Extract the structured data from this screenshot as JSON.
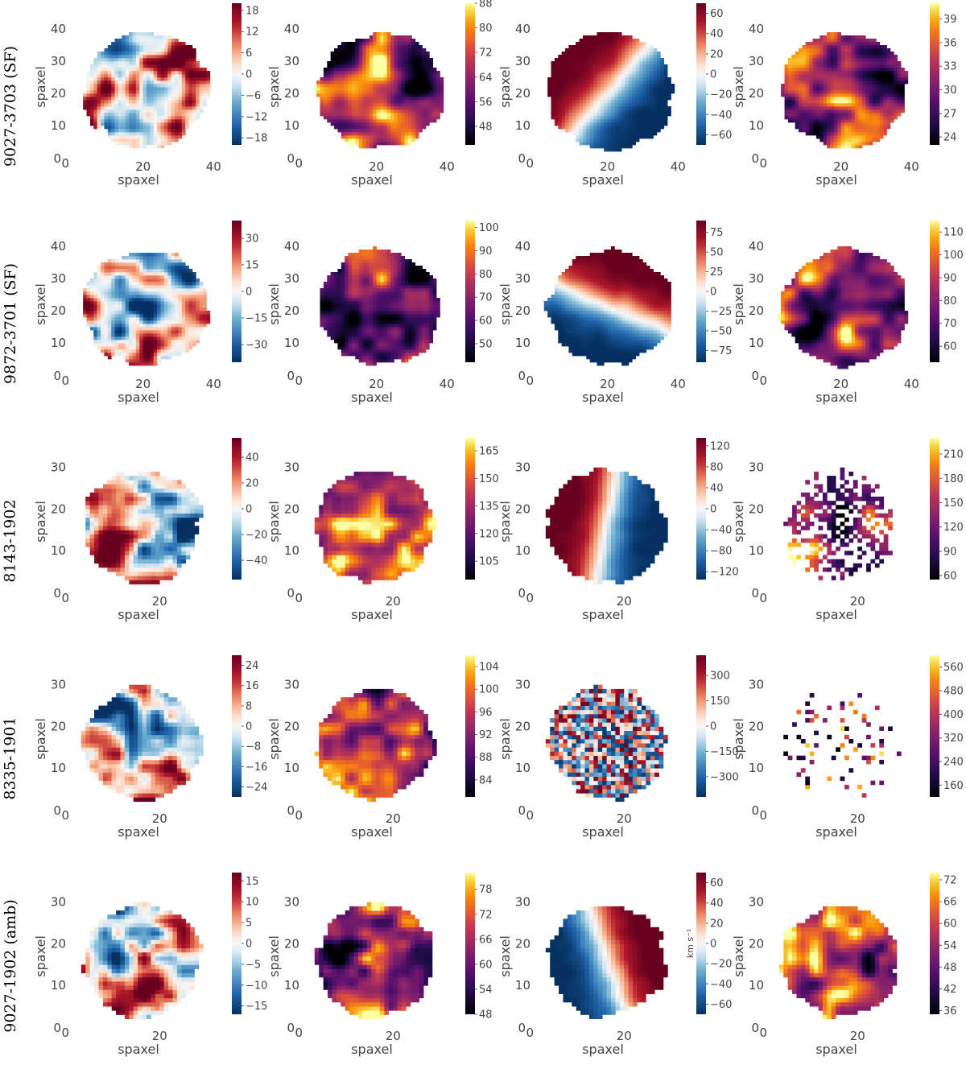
{
  "figure": {
    "background": "#ffffff"
  },
  "chart_data": [
    {
      "type": "heatmap",
      "row": 0,
      "col": 0,
      "row_label": "9027-3703 (SF)",
      "cmap": "rdbu",
      "xlabel": "spaxel",
      "ylabel": "spaxel",
      "xlim": [
        0,
        42
      ],
      "ylim": [
        0,
        44
      ],
      "xticks": [
        20,
        40
      ],
      "yticks": [
        10,
        20,
        30,
        40
      ],
      "origin_label": "0",
      "vmin": -20,
      "vmax": 20,
      "colorbar_ticks": [
        "18",
        "12",
        "6",
        "0",
        "−6",
        "−12",
        "−18"
      ],
      "colorbar_label": ""
    },
    {
      "type": "heatmap",
      "row": 0,
      "col": 1,
      "cmap": "inferno",
      "xlabel": "spaxel",
      "ylabel": "spaxel",
      "xlim": [
        0,
        42
      ],
      "ylim": [
        0,
        44
      ],
      "xticks": [
        20,
        40
      ],
      "yticks": [
        10,
        20,
        30,
        40
      ],
      "origin_label": "0",
      "vmin": 42,
      "vmax": 88,
      "colorbar_ticks": [
        "88",
        "80",
        "72",
        "64",
        "56",
        "48"
      ],
      "colorbar_label": ""
    },
    {
      "type": "heatmap",
      "row": 0,
      "col": 2,
      "cmap": "rdbu",
      "xlabel": "spaxel",
      "ylabel": "spaxel",
      "xlim": [
        0,
        42
      ],
      "ylim": [
        0,
        44
      ],
      "xticks": [
        20,
        40
      ],
      "yticks": [
        10,
        20,
        30,
        40
      ],
      "origin_label": "0",
      "vmin": -70,
      "vmax": 70,
      "colorbar_ticks": [
        "60",
        "40",
        "20",
        "0",
        "−20",
        "−40",
        "−60"
      ],
      "colorbar_label": ""
    },
    {
      "type": "heatmap",
      "row": 0,
      "col": 3,
      "cmap": "inferno",
      "xlabel": "spaxel",
      "ylabel": "spaxel",
      "xlim": [
        0,
        42
      ],
      "ylim": [
        0,
        44
      ],
      "xticks": [
        20,
        40
      ],
      "yticks": [
        10,
        20,
        30,
        40
      ],
      "origin_label": "0",
      "vmin": 23,
      "vmax": 41,
      "colorbar_ticks": [
        "39",
        "36",
        "33",
        "30",
        "27",
        "24"
      ],
      "colorbar_label": ""
    },
    {
      "type": "heatmap",
      "row": 1,
      "col": 0,
      "row_label": "9872-3701 (SF)",
      "cmap": "rdbu",
      "xlabel": "spaxel",
      "ylabel": "spaxel",
      "xlim": [
        0,
        42
      ],
      "ylim": [
        0,
        44
      ],
      "xticks": [
        20,
        40
      ],
      "yticks": [
        10,
        20,
        30,
        40
      ],
      "origin_label": "0",
      "vmin": -40,
      "vmax": 40,
      "colorbar_ticks": [
        "30",
        "15",
        "0",
        "−15",
        "−30"
      ],
      "colorbar_label": ""
    },
    {
      "type": "heatmap",
      "row": 1,
      "col": 1,
      "cmap": "inferno",
      "xlabel": "spaxel",
      "ylabel": "spaxel",
      "xlim": [
        0,
        42
      ],
      "ylim": [
        0,
        44
      ],
      "xticks": [
        20,
        40
      ],
      "yticks": [
        10,
        20,
        30,
        40
      ],
      "origin_label": "0",
      "vmin": 42,
      "vmax": 103,
      "colorbar_ticks": [
        "100",
        "90",
        "80",
        "70",
        "60",
        "50"
      ],
      "colorbar_label": ""
    },
    {
      "type": "heatmap",
      "row": 1,
      "col": 2,
      "cmap": "rdbu",
      "xlabel": "spaxel",
      "ylabel": "spaxel",
      "xlim": [
        0,
        42
      ],
      "ylim": [
        0,
        44
      ],
      "xticks": [
        20,
        40
      ],
      "yticks": [
        10,
        20,
        30,
        40
      ],
      "origin_label": "0",
      "vmin": -90,
      "vmax": 90,
      "colorbar_ticks": [
        "75",
        "50",
        "25",
        "0",
        "−25",
        "−50",
        "−75"
      ],
      "colorbar_label": ""
    },
    {
      "type": "heatmap",
      "row": 1,
      "col": 3,
      "cmap": "inferno",
      "xlabel": "spaxel",
      "ylabel": "spaxel",
      "xlim": [
        0,
        42
      ],
      "ylim": [
        0,
        44
      ],
      "xticks": [
        20,
        40
      ],
      "yticks": [
        10,
        20,
        30,
        40
      ],
      "origin_label": "0",
      "vmin": 53,
      "vmax": 115,
      "colorbar_ticks": [
        "110",
        "100",
        "90",
        "80",
        "70",
        "60"
      ],
      "colorbar_label": ""
    },
    {
      "type": "heatmap",
      "row": 2,
      "col": 0,
      "row_label": "8143-1902",
      "cmap": "rdbu",
      "xlabel": "spaxel",
      "ylabel": "spaxel",
      "xlim": [
        0,
        34
      ],
      "ylim": [
        0,
        34
      ],
      "xticks": [
        20
      ],
      "yticks": [
        10,
        20,
        30
      ],
      "origin_label": "0",
      "vmin": -55,
      "vmax": 55,
      "colorbar_ticks": [
        "40",
        "20",
        "0",
        "−20",
        "−40"
      ],
      "colorbar_label": ""
    },
    {
      "type": "heatmap",
      "row": 2,
      "col": 1,
      "cmap": "inferno",
      "xlabel": "spaxel",
      "ylabel": "spaxel",
      "xlim": [
        0,
        34
      ],
      "ylim": [
        0,
        34
      ],
      "xticks": [
        20
      ],
      "yticks": [
        10,
        20,
        30
      ],
      "origin_label": "0",
      "vmin": 95,
      "vmax": 172,
      "colorbar_ticks": [
        "165",
        "150",
        "135",
        "120",
        "105"
      ],
      "colorbar_label": ""
    },
    {
      "type": "heatmap",
      "row": 2,
      "col": 2,
      "cmap": "rdbu",
      "xlabel": "spaxel",
      "ylabel": "spaxel",
      "xlim": [
        0,
        34
      ],
      "ylim": [
        0,
        34
      ],
      "xticks": [
        20
      ],
      "yticks": [
        10,
        20,
        30
      ],
      "origin_label": "0",
      "vmin": -135,
      "vmax": 135,
      "colorbar_ticks": [
        "120",
        "80",
        "40",
        "0",
        "−40",
        "−80",
        "−120"
      ],
      "colorbar_label": ""
    },
    {
      "type": "heatmap",
      "row": 2,
      "col": 3,
      "cmap": "inferno",
      "xlabel": "spaxel",
      "ylabel": "spaxel",
      "xlim": [
        0,
        34
      ],
      "ylim": [
        0,
        34
      ],
      "xticks": [
        20
      ],
      "yticks": [
        10,
        20,
        30
      ],
      "origin_label": "0",
      "vmin": 55,
      "vmax": 230,
      "colorbar_ticks": [
        "210",
        "180",
        "150",
        "120",
        "90",
        "60"
      ],
      "colorbar_label": ""
    },
    {
      "type": "heatmap",
      "row": 3,
      "col": 0,
      "row_label": "8335-1901",
      "cmap": "rdbu",
      "xlabel": "spaxel",
      "ylabel": "spaxel",
      "xlim": [
        0,
        34
      ],
      "ylim": [
        0,
        34
      ],
      "xticks": [
        20
      ],
      "yticks": [
        10,
        20,
        30
      ],
      "origin_label": "0",
      "vmin": -28,
      "vmax": 28,
      "colorbar_ticks": [
        "24",
        "16",
        "8",
        "0",
        "−8",
        "−16",
        "−24"
      ],
      "colorbar_label": ""
    },
    {
      "type": "heatmap",
      "row": 3,
      "col": 1,
      "cmap": "inferno",
      "xlabel": "spaxel",
      "ylabel": "spaxel",
      "xlim": [
        0,
        34
      ],
      "ylim": [
        0,
        34
      ],
      "xticks": [
        20
      ],
      "yticks": [
        10,
        20,
        30
      ],
      "origin_label": "0",
      "vmin": 81,
      "vmax": 106,
      "colorbar_ticks": [
        "104",
        "100",
        "96",
        "92",
        "88",
        "84"
      ],
      "colorbar_label": ""
    },
    {
      "type": "heatmap",
      "row": 3,
      "col": 2,
      "cmap": "rdbu",
      "xlabel": "spaxel",
      "ylabel": "spaxel",
      "xlim": [
        0,
        34
      ],
      "ylim": [
        0,
        34
      ],
      "xticks": [
        20
      ],
      "yticks": [
        10,
        20,
        30
      ],
      "origin_label": "0",
      "vmin": -420,
      "vmax": 420,
      "colorbar_ticks": [
        "300",
        "150",
        "0",
        "−150",
        "−300"
      ],
      "colorbar_label": ""
    },
    {
      "type": "heatmap",
      "row": 3,
      "col": 3,
      "cmap": "inferno",
      "xlabel": "spaxel",
      "ylabel": "spaxel",
      "xlim": [
        0,
        34
      ],
      "ylim": [
        0,
        34
      ],
      "xticks": [
        20
      ],
      "yticks": [
        10,
        20,
        30
      ],
      "origin_label": "0",
      "vmin": 120,
      "vmax": 600,
      "colorbar_ticks": [
        "560",
        "480",
        "400",
        "320",
        "240",
        "160"
      ],
      "colorbar_label": ""
    },
    {
      "type": "heatmap",
      "row": 4,
      "col": 0,
      "row_label": "9027-1902 (amb)",
      "cmap": "rdbu",
      "xlabel": "spaxel",
      "ylabel": "spaxel",
      "xlim": [
        0,
        34
      ],
      "ylim": [
        0,
        34
      ],
      "xticks": [
        20
      ],
      "yticks": [
        10,
        20,
        30
      ],
      "origin_label": "0",
      "vmin": -17,
      "vmax": 17,
      "colorbar_ticks": [
        "15",
        "10",
        "5",
        "0",
        "−5",
        "−10",
        "−15"
      ],
      "colorbar_label": ""
    },
    {
      "type": "heatmap",
      "row": 4,
      "col": 1,
      "cmap": "inferno",
      "xlabel": "spaxel",
      "ylabel": "spaxel",
      "xlim": [
        0,
        34
      ],
      "ylim": [
        0,
        34
      ],
      "xticks": [
        20
      ],
      "yticks": [
        10,
        20,
        30
      ],
      "origin_label": "0",
      "vmin": 48,
      "vmax": 82,
      "colorbar_ticks": [
        "78",
        "72",
        "66",
        "60",
        "54",
        "48"
      ],
      "colorbar_label": ""
    },
    {
      "type": "heatmap",
      "row": 4,
      "col": 2,
      "cmap": "rdbu",
      "xlabel": "spaxel",
      "ylabel": "spaxel",
      "xlim": [
        0,
        34
      ],
      "ylim": [
        0,
        34
      ],
      "xticks": [
        20
      ],
      "yticks": [
        10,
        20,
        30
      ],
      "origin_label": "0",
      "vmin": -70,
      "vmax": 70,
      "colorbar_ticks": [
        "60",
        "40",
        "20",
        "0",
        "−20",
        "−40",
        "−60"
      ],
      "colorbar_label": "km s⁻¹"
    },
    {
      "type": "heatmap",
      "row": 4,
      "col": 3,
      "cmap": "inferno",
      "xlabel": "spaxel",
      "ylabel": "spaxel",
      "xlim": [
        0,
        34
      ],
      "ylim": [
        0,
        34
      ],
      "xticks": [
        20
      ],
      "yticks": [
        10,
        20,
        30
      ],
      "origin_label": "0",
      "vmin": 35,
      "vmax": 74,
      "colorbar_ticks": [
        "72",
        "66",
        "60",
        "54",
        "48",
        "42",
        "36"
      ],
      "colorbar_label": ""
    }
  ]
}
